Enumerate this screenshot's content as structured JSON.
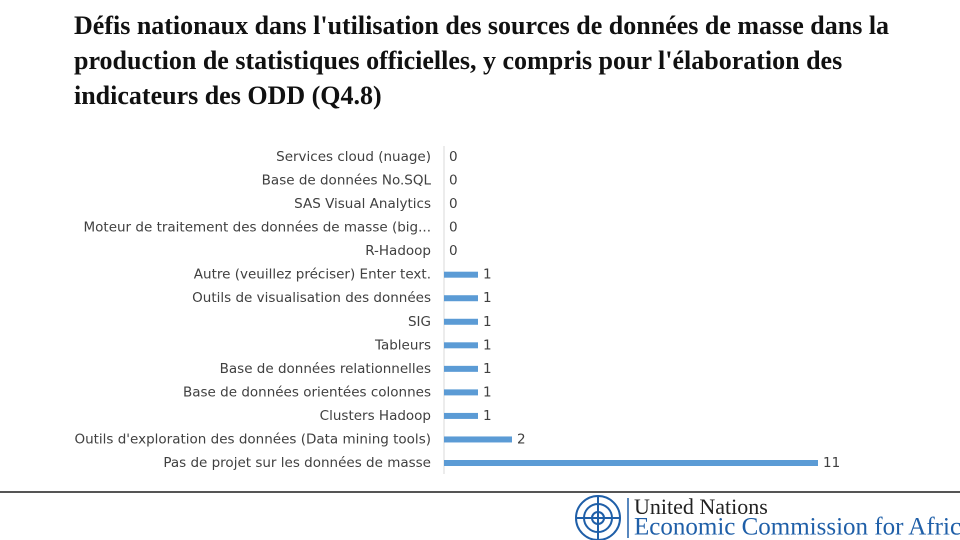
{
  "chart_data": {
    "type": "bar",
    "orientation": "horizontal",
    "title": "Défis nationaux dans l'utilisation des sources de données de masse dans la production de statistiques officielles, y compris pour l'élaboration des indicateurs des ODD (Q4.8)",
    "categories": [
      "Services cloud (nuage)",
      "Base de données No.SQL",
      "SAS Visual Analytics",
      "Moteur de traitement des données de masse (big...",
      "R-Hadoop",
      "Autre (veuillez préciser) Enter text.",
      "Outils de visualisation des données",
      "SIG",
      "Tableurs",
      "Base de données relationnelles",
      "Base de données orientées colonnes",
      "Clusters Hadoop",
      "Outils d'exploration des données (Data mining tools)",
      "Pas de projet sur les données de masse"
    ],
    "values": [
      0,
      0,
      0,
      0,
      0,
      1,
      1,
      1,
      1,
      1,
      1,
      1,
      2,
      11
    ],
    "color": "#5b9bd5"
  },
  "footer": {
    "organization": "United Nations",
    "commission": "Economic Commission for Africa"
  }
}
